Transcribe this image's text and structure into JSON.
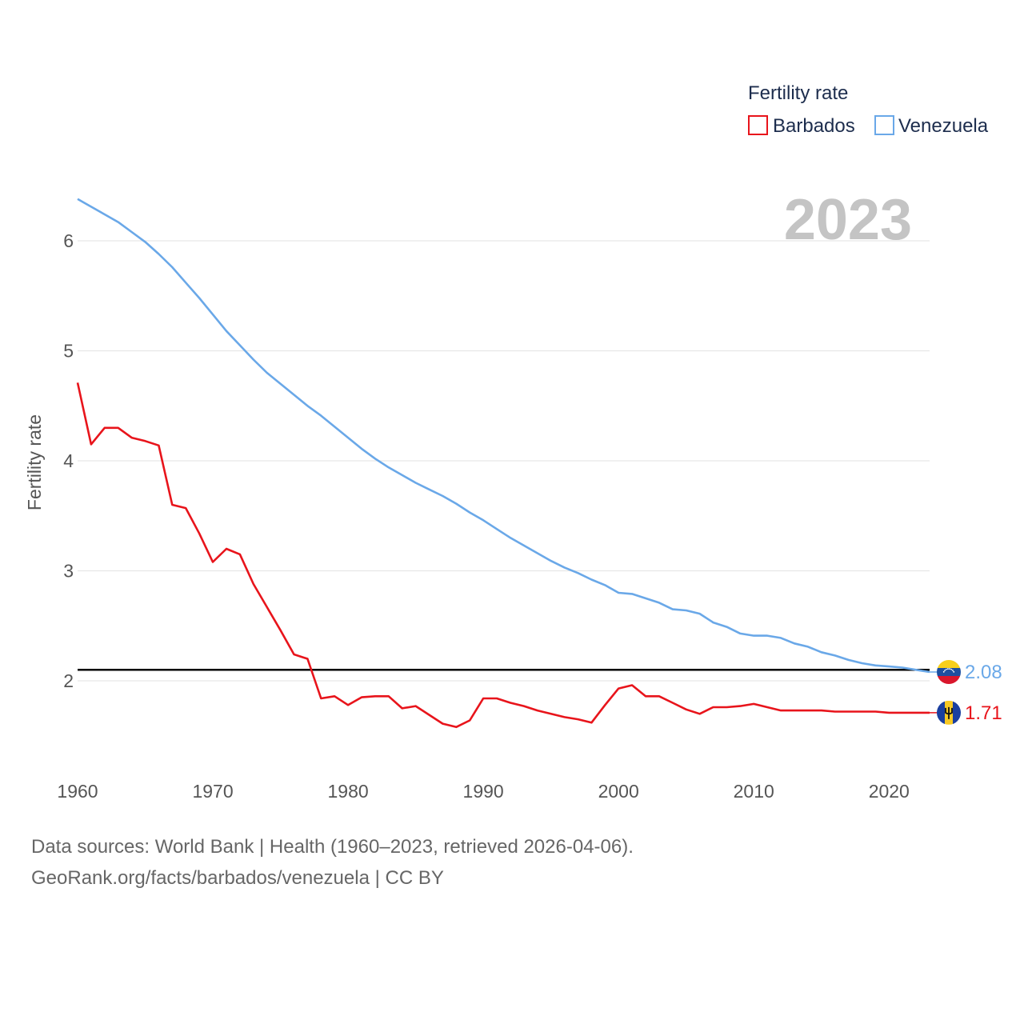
{
  "chart_data": {
    "type": "line",
    "ylabel": "Fertility rate",
    "xlabel": "",
    "xlim": [
      1960,
      2023
    ],
    "ylim": [
      1.3,
      6.6
    ],
    "xticks": [
      1960,
      1970,
      1980,
      1990,
      2000,
      2010,
      2020
    ],
    "yticks": [
      2,
      3,
      4,
      5,
      6
    ],
    "year_label": "2023",
    "reference_line": 2.1,
    "legend": {
      "title": "Fertility rate",
      "placement": "top-right"
    },
    "x": [
      1960,
      1961,
      1962,
      1963,
      1964,
      1965,
      1966,
      1967,
      1968,
      1969,
      1970,
      1971,
      1972,
      1973,
      1974,
      1975,
      1976,
      1977,
      1978,
      1979,
      1980,
      1981,
      1982,
      1983,
      1984,
      1985,
      1986,
      1987,
      1988,
      1989,
      1990,
      1991,
      1992,
      1993,
      1994,
      1995,
      1996,
      1997,
      1998,
      1999,
      2000,
      2001,
      2002,
      2003,
      2004,
      2005,
      2006,
      2007,
      2008,
      2009,
      2010,
      2011,
      2012,
      2013,
      2014,
      2015,
      2016,
      2017,
      2018,
      2019,
      2020,
      2021,
      2022,
      2023
    ],
    "series": [
      {
        "name": "Barbados",
        "color": "#e8141b",
        "end_label": "1.71",
        "values": [
          4.71,
          4.15,
          4.3,
          4.3,
          4.21,
          4.18,
          4.14,
          3.6,
          3.57,
          3.34,
          3.08,
          3.2,
          3.15,
          2.88,
          2.67,
          2.46,
          2.24,
          2.2,
          1.84,
          1.86,
          1.78,
          1.85,
          1.86,
          1.86,
          1.75,
          1.77,
          1.69,
          1.61,
          1.58,
          1.64,
          1.84,
          1.84,
          1.8,
          1.77,
          1.73,
          1.7,
          1.67,
          1.65,
          1.62,
          1.78,
          1.93,
          1.96,
          1.86,
          1.86,
          1.8,
          1.74,
          1.7,
          1.76,
          1.76,
          1.77,
          1.79,
          1.76,
          1.73,
          1.73,
          1.73,
          1.73,
          1.72,
          1.72,
          1.72,
          1.72,
          1.71,
          1.71,
          1.71,
          1.71
        ]
      },
      {
        "name": "Venezuela",
        "color": "#6aa8e8",
        "end_label": "2.08",
        "values": [
          6.38,
          6.31,
          6.24,
          6.17,
          6.08,
          5.99,
          5.88,
          5.76,
          5.62,
          5.48,
          5.33,
          5.18,
          5.05,
          4.92,
          4.8,
          4.7,
          4.6,
          4.5,
          4.41,
          4.31,
          4.21,
          4.11,
          4.02,
          3.94,
          3.87,
          3.8,
          3.74,
          3.68,
          3.61,
          3.53,
          3.46,
          3.38,
          3.3,
          3.23,
          3.16,
          3.09,
          3.03,
          2.98,
          2.92,
          2.87,
          2.8,
          2.79,
          2.75,
          2.71,
          2.65,
          2.64,
          2.61,
          2.53,
          2.49,
          2.43,
          2.41,
          2.41,
          2.39,
          2.34,
          2.31,
          2.26,
          2.23,
          2.19,
          2.16,
          2.14,
          2.13,
          2.12,
          2.1,
          2.08
        ]
      }
    ]
  },
  "footer": {
    "line1": "Data sources: World Bank | Health (1960–2023, retrieved 2026-04-06).",
    "line2": "GeoRank.org/facts/barbados/venezuela | CC BY"
  }
}
